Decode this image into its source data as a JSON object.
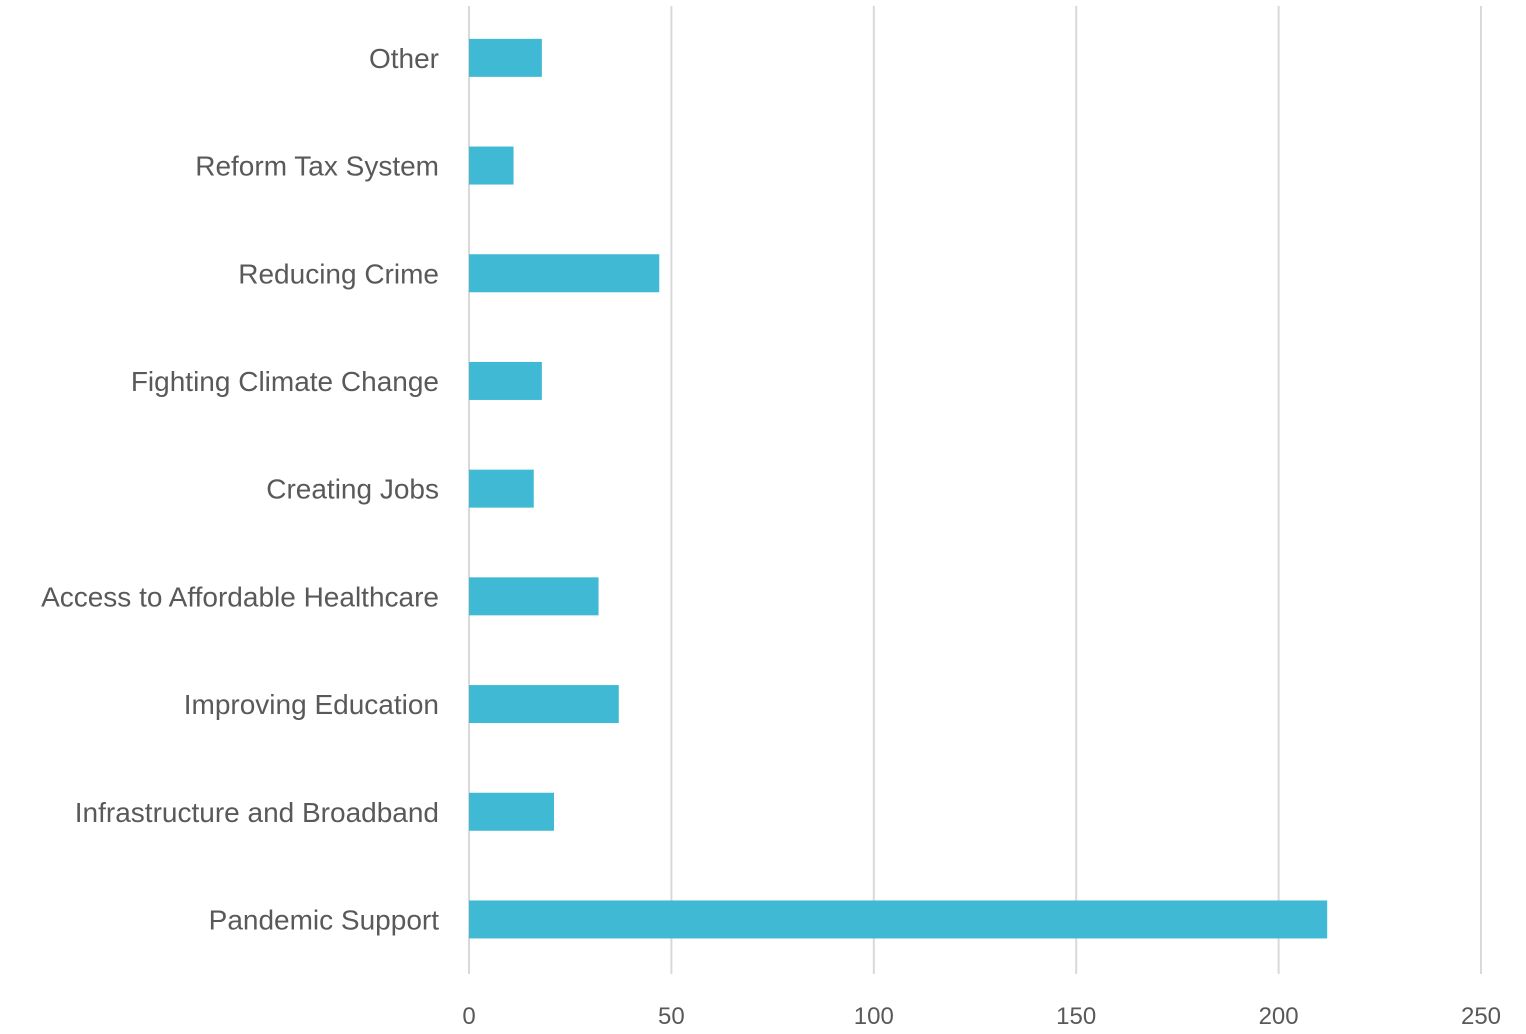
{
  "chart_data": {
    "type": "bar",
    "orientation": "horizontal",
    "title": "",
    "xlabel": "",
    "ylabel": "",
    "categories": [
      "Pandemic Support",
      "Infrastructure and Broadband",
      "Improving Education",
      "Access to Affordable Healthcare",
      "Creating Jobs",
      "Fighting Climate Change",
      "Reducing Crime",
      "Reform Tax System",
      "Other"
    ],
    "values": [
      212,
      21,
      37,
      32,
      16,
      18,
      47,
      11,
      18
    ],
    "xlim": [
      0,
      250
    ],
    "xticks": [
      0,
      50,
      100,
      150,
      200,
      250
    ],
    "xtick_labels": [
      "0",
      "50",
      "100",
      "150",
      "200",
      "250"
    ],
    "grid": "vertical",
    "legend": "none",
    "bar_color": "#40B9D4",
    "grid_color": "#D9D9D9",
    "text_color": "#595959"
  }
}
